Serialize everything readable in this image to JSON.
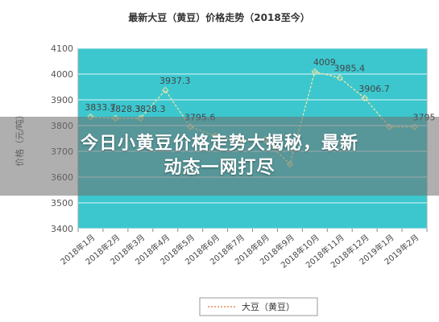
{
  "chart_data": {
    "type": "line",
    "title": "最新大豆（黄豆）价格走势（2018至今）",
    "ylabel": "价格（元/吨）",
    "xlabel": "",
    "ylim": [
      3400,
      4100
    ],
    "yticks": [
      3400,
      3500,
      3600,
      3700,
      3800,
      3900,
      4000,
      4100
    ],
    "categories": [
      "2018年1月",
      "2018年2月",
      "2018年3月",
      "2018年4月",
      "2018年5月",
      "2018年6月",
      "2018年7月",
      "2018年8月",
      "2018年9月",
      "2018年10月",
      "2018年11月",
      "2018年12月",
      "2019年1月",
      "2019年2月"
    ],
    "series": [
      {
        "name": "大豆（黄豆）",
        "values": [
          3833.7,
          3828.3,
          3828.3,
          3937.3,
          3795.6,
          3760,
          3740,
          3745,
          3650,
          4009,
          3985.4,
          3906.7,
          3795,
          3795
        ],
        "labels": [
          "3833.7",
          "3828.3",
          "3828.3",
          "3937.3",
          "3795.6",
          "",
          "",
          "",
          "",
          "4009",
          "3985.4",
          "3906.7",
          "",
          "3795"
        ]
      }
    ],
    "grid": true,
    "legend_position": "bottom",
    "colors": {
      "plot_bg": "#3cc7cf",
      "line": "#f2e6a0",
      "gridline": "#ffffff",
      "label": "#444444"
    }
  },
  "overlay": {
    "line1": "今日小黄豆价格走势大揭秘，最新",
    "line2": "动态一网打尽"
  }
}
